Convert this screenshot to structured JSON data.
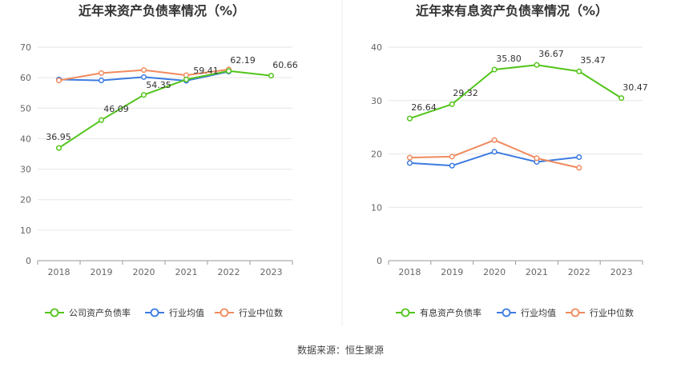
{
  "source_text": "数据来源：恒生聚源",
  "chart_data": [
    {
      "type": "line",
      "title": "近年来资产负债率情况（%）",
      "categories": [
        "2018",
        "2019",
        "2020",
        "2021",
        "2022",
        "2023"
      ],
      "ylim": [
        0,
        70
      ],
      "yticks": [
        0,
        10,
        20,
        30,
        40,
        50,
        60,
        70
      ],
      "xlabel": "",
      "ylabel": "",
      "grid": true,
      "legend_position": "bottom",
      "series": [
        {
          "name": "公司资产负债率",
          "color": "#52c41a",
          "values": [
            36.95,
            46.09,
            54.35,
            59.41,
            62.19,
            60.66
          ],
          "labels": [
            "36.95",
            "46.09",
            "54.35",
            "59.41",
            "62.19",
            "60.66"
          ]
        },
        {
          "name": "行业均值",
          "color": "#3c7be0",
          "values": [
            59.4,
            59.1,
            60.2,
            59.0,
            62.0,
            null
          ]
        },
        {
          "name": "行业中位数",
          "color": "#f08a5d",
          "values": [
            59.1,
            61.5,
            62.5,
            60.8,
            62.7,
            null
          ]
        }
      ]
    },
    {
      "type": "line",
      "title": "近年来有息资产负债率情况（%）",
      "categories": [
        "2018",
        "2019",
        "2020",
        "2021",
        "2022",
        "2023"
      ],
      "ylim": [
        0,
        40
      ],
      "yticks": [
        0,
        10,
        20,
        30,
        40
      ],
      "xlabel": "",
      "ylabel": "",
      "grid": true,
      "legend_position": "bottom",
      "series": [
        {
          "name": "有息资产负债率",
          "color": "#52c41a",
          "values": [
            26.64,
            29.32,
            35.8,
            36.67,
            35.47,
            30.47
          ],
          "labels": [
            "26.64",
            "29.32",
            "35.80",
            "36.67",
            "35.47",
            "30.47"
          ]
        },
        {
          "name": "行业均值",
          "color": "#3c7be0",
          "values": [
            18.3,
            17.8,
            20.4,
            18.5,
            19.4,
            null
          ]
        },
        {
          "name": "行业中位数",
          "color": "#f08a5d",
          "values": [
            19.3,
            19.5,
            22.6,
            19.2,
            17.4,
            null
          ]
        }
      ]
    }
  ]
}
